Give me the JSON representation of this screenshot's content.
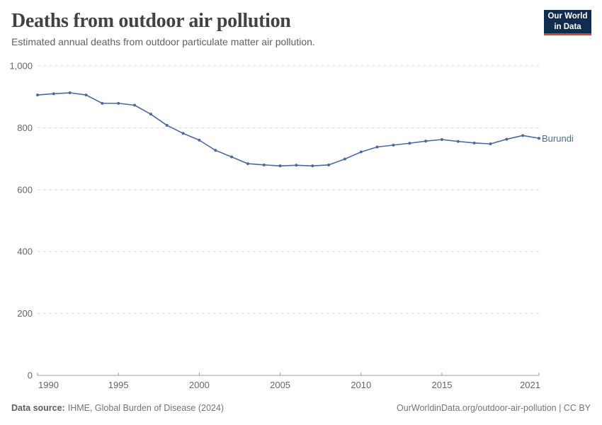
{
  "header": {
    "title": "Deaths from outdoor air pollution",
    "subtitle": "Estimated annual deaths from outdoor particulate matter air pollution."
  },
  "logo": {
    "line1": "Our World",
    "line2": "in Data",
    "bg_color": "#102d50",
    "accent_color": "#e23d3d"
  },
  "chart_data": {
    "type": "line",
    "title": "Deaths from outdoor air pollution",
    "x": [
      1990,
      1991,
      1992,
      1993,
      1994,
      1995,
      1996,
      1997,
      1998,
      1999,
      2000,
      2001,
      2002,
      2003,
      2004,
      2005,
      2006,
      2007,
      2008,
      2009,
      2010,
      2011,
      2012,
      2013,
      2014,
      2015,
      2016,
      2017,
      2018,
      2019,
      2020,
      2021
    ],
    "series": [
      {
        "name": "Burundi",
        "color": "#4c6a9c",
        "values": [
          906,
          910,
          913,
          906,
          879,
          879,
          873,
          844,
          808,
          782,
          760,
          727,
          706,
          684,
          680,
          677,
          679,
          677,
          680,
          699,
          722,
          738,
          744,
          750,
          757,
          762,
          756,
          751,
          748,
          763,
          775,
          766
        ]
      }
    ],
    "x_ticks": [
      1990,
      1995,
      2000,
      2005,
      2010,
      2015,
      2021
    ],
    "y_ticks": [
      0,
      200,
      400,
      600,
      800,
      1000
    ],
    "y_tick_labels": [
      "0",
      "200",
      "400",
      "600",
      "800",
      "1,000"
    ],
    "xlim": [
      1990,
      2021
    ],
    "ylim": [
      0,
      1000
    ],
    "grid": "horizontal-dashed",
    "legend_position": "end-of-line"
  },
  "footer": {
    "source_label": "Data source:",
    "source_text": "IHME, Global Burden of Disease (2024)",
    "credit": "OurWorldinData.org/outdoor-air-pollution | CC BY"
  }
}
